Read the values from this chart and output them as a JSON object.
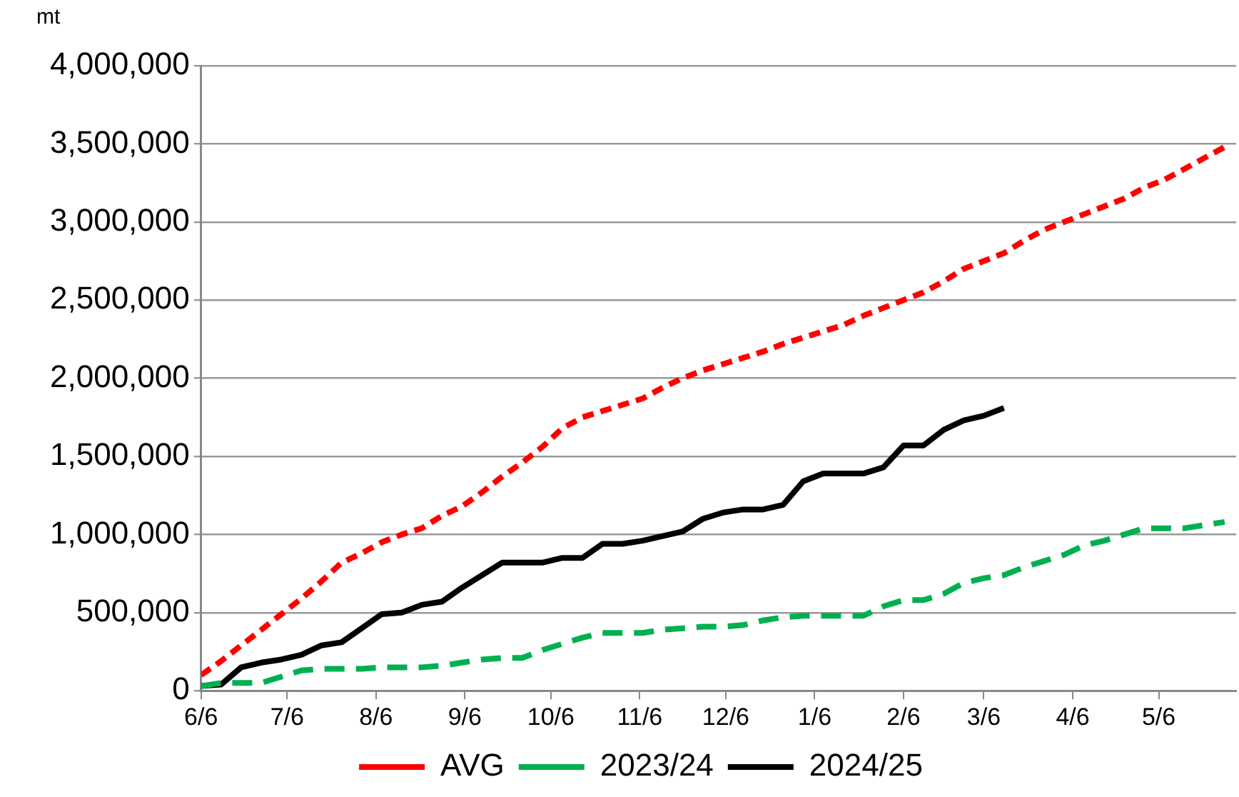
{
  "chart_data": {
    "type": "line",
    "ylabel": "mt",
    "x": [
      "2024-06-06",
      "2024-06-13",
      "2024-06-20",
      "2024-06-27",
      "2024-07-04",
      "2024-07-11",
      "2024-07-18",
      "2024-07-25",
      "2024-08-01",
      "2024-08-08",
      "2024-08-15",
      "2024-08-22",
      "2024-08-29",
      "2024-09-05",
      "2024-09-12",
      "2024-09-19",
      "2024-09-26",
      "2024-10-03",
      "2024-10-10",
      "2024-10-17",
      "2024-10-24",
      "2024-10-31",
      "2024-11-07",
      "2024-11-14",
      "2024-11-21",
      "2024-11-28",
      "2024-12-05",
      "2024-12-12",
      "2024-12-19",
      "2024-12-26",
      "2025-01-02",
      "2025-01-09",
      "2025-01-16",
      "2025-01-23",
      "2025-01-30",
      "2025-02-06",
      "2025-02-13",
      "2025-02-20",
      "2025-02-27",
      "2025-03-06",
      "2025-03-13",
      "2025-03-20",
      "2025-03-27",
      "2025-04-03",
      "2025-04-10",
      "2025-04-17",
      "2025-04-24",
      "2025-05-01",
      "2025-05-08",
      "2025-05-15",
      "2025-05-22",
      "2025-05-29"
    ],
    "series": [
      {
        "name": "AVG",
        "color": "#ff0000",
        "line_style": "dotted",
        "values": [
          100000,
          190000,
          290000,
          390000,
          490000,
          590000,
          700000,
          820000,
          880000,
          950000,
          1000000,
          1040000,
          1120000,
          1180000,
          1270000,
          1370000,
          1460000,
          1560000,
          1680000,
          1750000,
          1790000,
          1830000,
          1870000,
          1940000,
          2000000,
          2050000,
          2090000,
          2130000,
          2170000,
          2220000,
          2260000,
          2300000,
          2340000,
          2400000,
          2450000,
          2500000,
          2550000,
          2620000,
          2700000,
          2750000,
          2800000,
          2880000,
          2950000,
          3000000,
          3050000,
          3100000,
          3150000,
          3220000,
          3270000,
          3340000,
          3410000,
          3480000
        ]
      },
      {
        "name": "2023/24",
        "color": "#00b050",
        "line_style": "dashed",
        "values": [
          30000,
          50000,
          50000,
          50000,
          90000,
          130000,
          140000,
          140000,
          140000,
          150000,
          150000,
          150000,
          160000,
          180000,
          200000,
          210000,
          210000,
          260000,
          300000,
          340000,
          370000,
          370000,
          370000,
          390000,
          400000,
          410000,
          410000,
          420000,
          450000,
          470000,
          480000,
          480000,
          480000,
          480000,
          540000,
          580000,
          580000,
          620000,
          690000,
          720000,
          740000,
          790000,
          830000,
          870000,
          930000,
          960000,
          1000000,
          1040000,
          1040000,
          1040000,
          1060000,
          1080000
        ]
      },
      {
        "name": "2024/25",
        "color": "#000000",
        "line_style": "solid",
        "values": [
          30000,
          40000,
          150000,
          180000,
          200000,
          230000,
          290000,
          310000,
          400000,
          490000,
          500000,
          550000,
          570000,
          660000,
          740000,
          820000,
          820000,
          820000,
          850000,
          850000,
          940000,
          940000,
          960000,
          990000,
          1020000,
          1100000,
          1140000,
          1160000,
          1160000,
          1190000,
          1340000,
          1390000,
          1390000,
          1390000,
          1430000,
          1570000,
          1570000,
          1670000,
          1730000,
          1760000,
          1810000,
          null,
          null,
          null,
          null,
          null,
          null,
          null,
          null,
          null,
          null,
          null
        ]
      }
    ],
    "xlim": [
      "2024-06-06",
      "2025-06-02"
    ],
    "xticks": [
      {
        "value": "2024-06-06",
        "label": "6/6"
      },
      {
        "value": "2024-07-06",
        "label": "7/6"
      },
      {
        "value": "2024-08-06",
        "label": "8/6"
      },
      {
        "value": "2024-09-06",
        "label": "9/6"
      },
      {
        "value": "2024-10-06",
        "label": "10/6"
      },
      {
        "value": "2024-11-06",
        "label": "11/6"
      },
      {
        "value": "2024-12-06",
        "label": "12/6"
      },
      {
        "value": "2025-01-06",
        "label": "1/6"
      },
      {
        "value": "2025-02-06",
        "label": "2/6"
      },
      {
        "value": "2025-03-06",
        "label": "3/6"
      },
      {
        "value": "2025-04-06",
        "label": "4/6"
      },
      {
        "value": "2025-05-06",
        "label": "5/6"
      }
    ],
    "ylim": [
      0,
      4000000
    ],
    "yticks": [
      {
        "value": 0,
        "label": "0"
      },
      {
        "value": 500000,
        "label": "500,000"
      },
      {
        "value": 1000000,
        "label": "1,000,000"
      },
      {
        "value": 1500000,
        "label": "1,500,000"
      },
      {
        "value": 2000000,
        "label": "2,000,000"
      },
      {
        "value": 2500000,
        "label": "2,500,000"
      },
      {
        "value": 3000000,
        "label": "3,000,000"
      },
      {
        "value": 3500000,
        "label": "3,500,000"
      },
      {
        "value": 4000000,
        "label": "4,000,000"
      }
    ],
    "grid": "y",
    "legend": "bottom",
    "marker": "none"
  }
}
